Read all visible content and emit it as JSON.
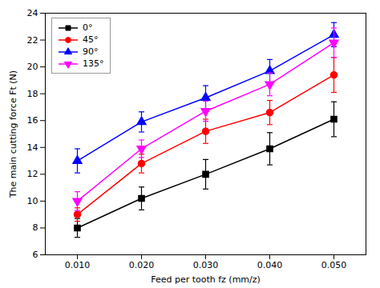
{
  "chart_data": {
    "type": "line",
    "x": [
      0.01,
      0.02,
      0.03,
      0.04,
      0.05
    ],
    "series": [
      {
        "name": "0°",
        "color": "#000000",
        "marker": "square",
        "values": [
          8.0,
          10.2,
          12.0,
          13.9,
          16.1
        ],
        "yerr": [
          0.7,
          0.85,
          1.1,
          1.2,
          1.3
        ]
      },
      {
        "name": "45°",
        "color": "#ff0000",
        "marker": "circle",
        "values": [
          9.0,
          12.8,
          15.2,
          16.6,
          19.4
        ],
        "yerr": [
          0.5,
          0.7,
          0.9,
          0.9,
          1.3
        ]
      },
      {
        "name": "90°",
        "color": "#0000ff",
        "marker": "triangle-up",
        "values": [
          13.0,
          15.9,
          17.7,
          19.7,
          22.4
        ],
        "yerr": [
          0.9,
          0.75,
          0.9,
          0.85,
          0.9
        ]
      },
      {
        "name": "135°",
        "color": "#ff00ff",
        "marker": "triangle-down",
        "values": [
          10.0,
          13.9,
          16.7,
          18.7,
          21.8
        ],
        "yerr": [
          0.7,
          0.65,
          0.75,
          0.85,
          1.1
        ]
      }
    ],
    "xlabel": "Feed per tooth fz (mm/z)",
    "ylabel": "The main cutting force Ft (N)",
    "xlim": [
      0.005,
      0.055
    ],
    "xticks": [
      0.01,
      0.02,
      0.03,
      0.04,
      0.05
    ],
    "ylim": [
      6,
      24
    ],
    "yticks": [
      6,
      8,
      10,
      12,
      14,
      16,
      18,
      20,
      22,
      24
    ],
    "legend": "upper left",
    "grid": false
  }
}
